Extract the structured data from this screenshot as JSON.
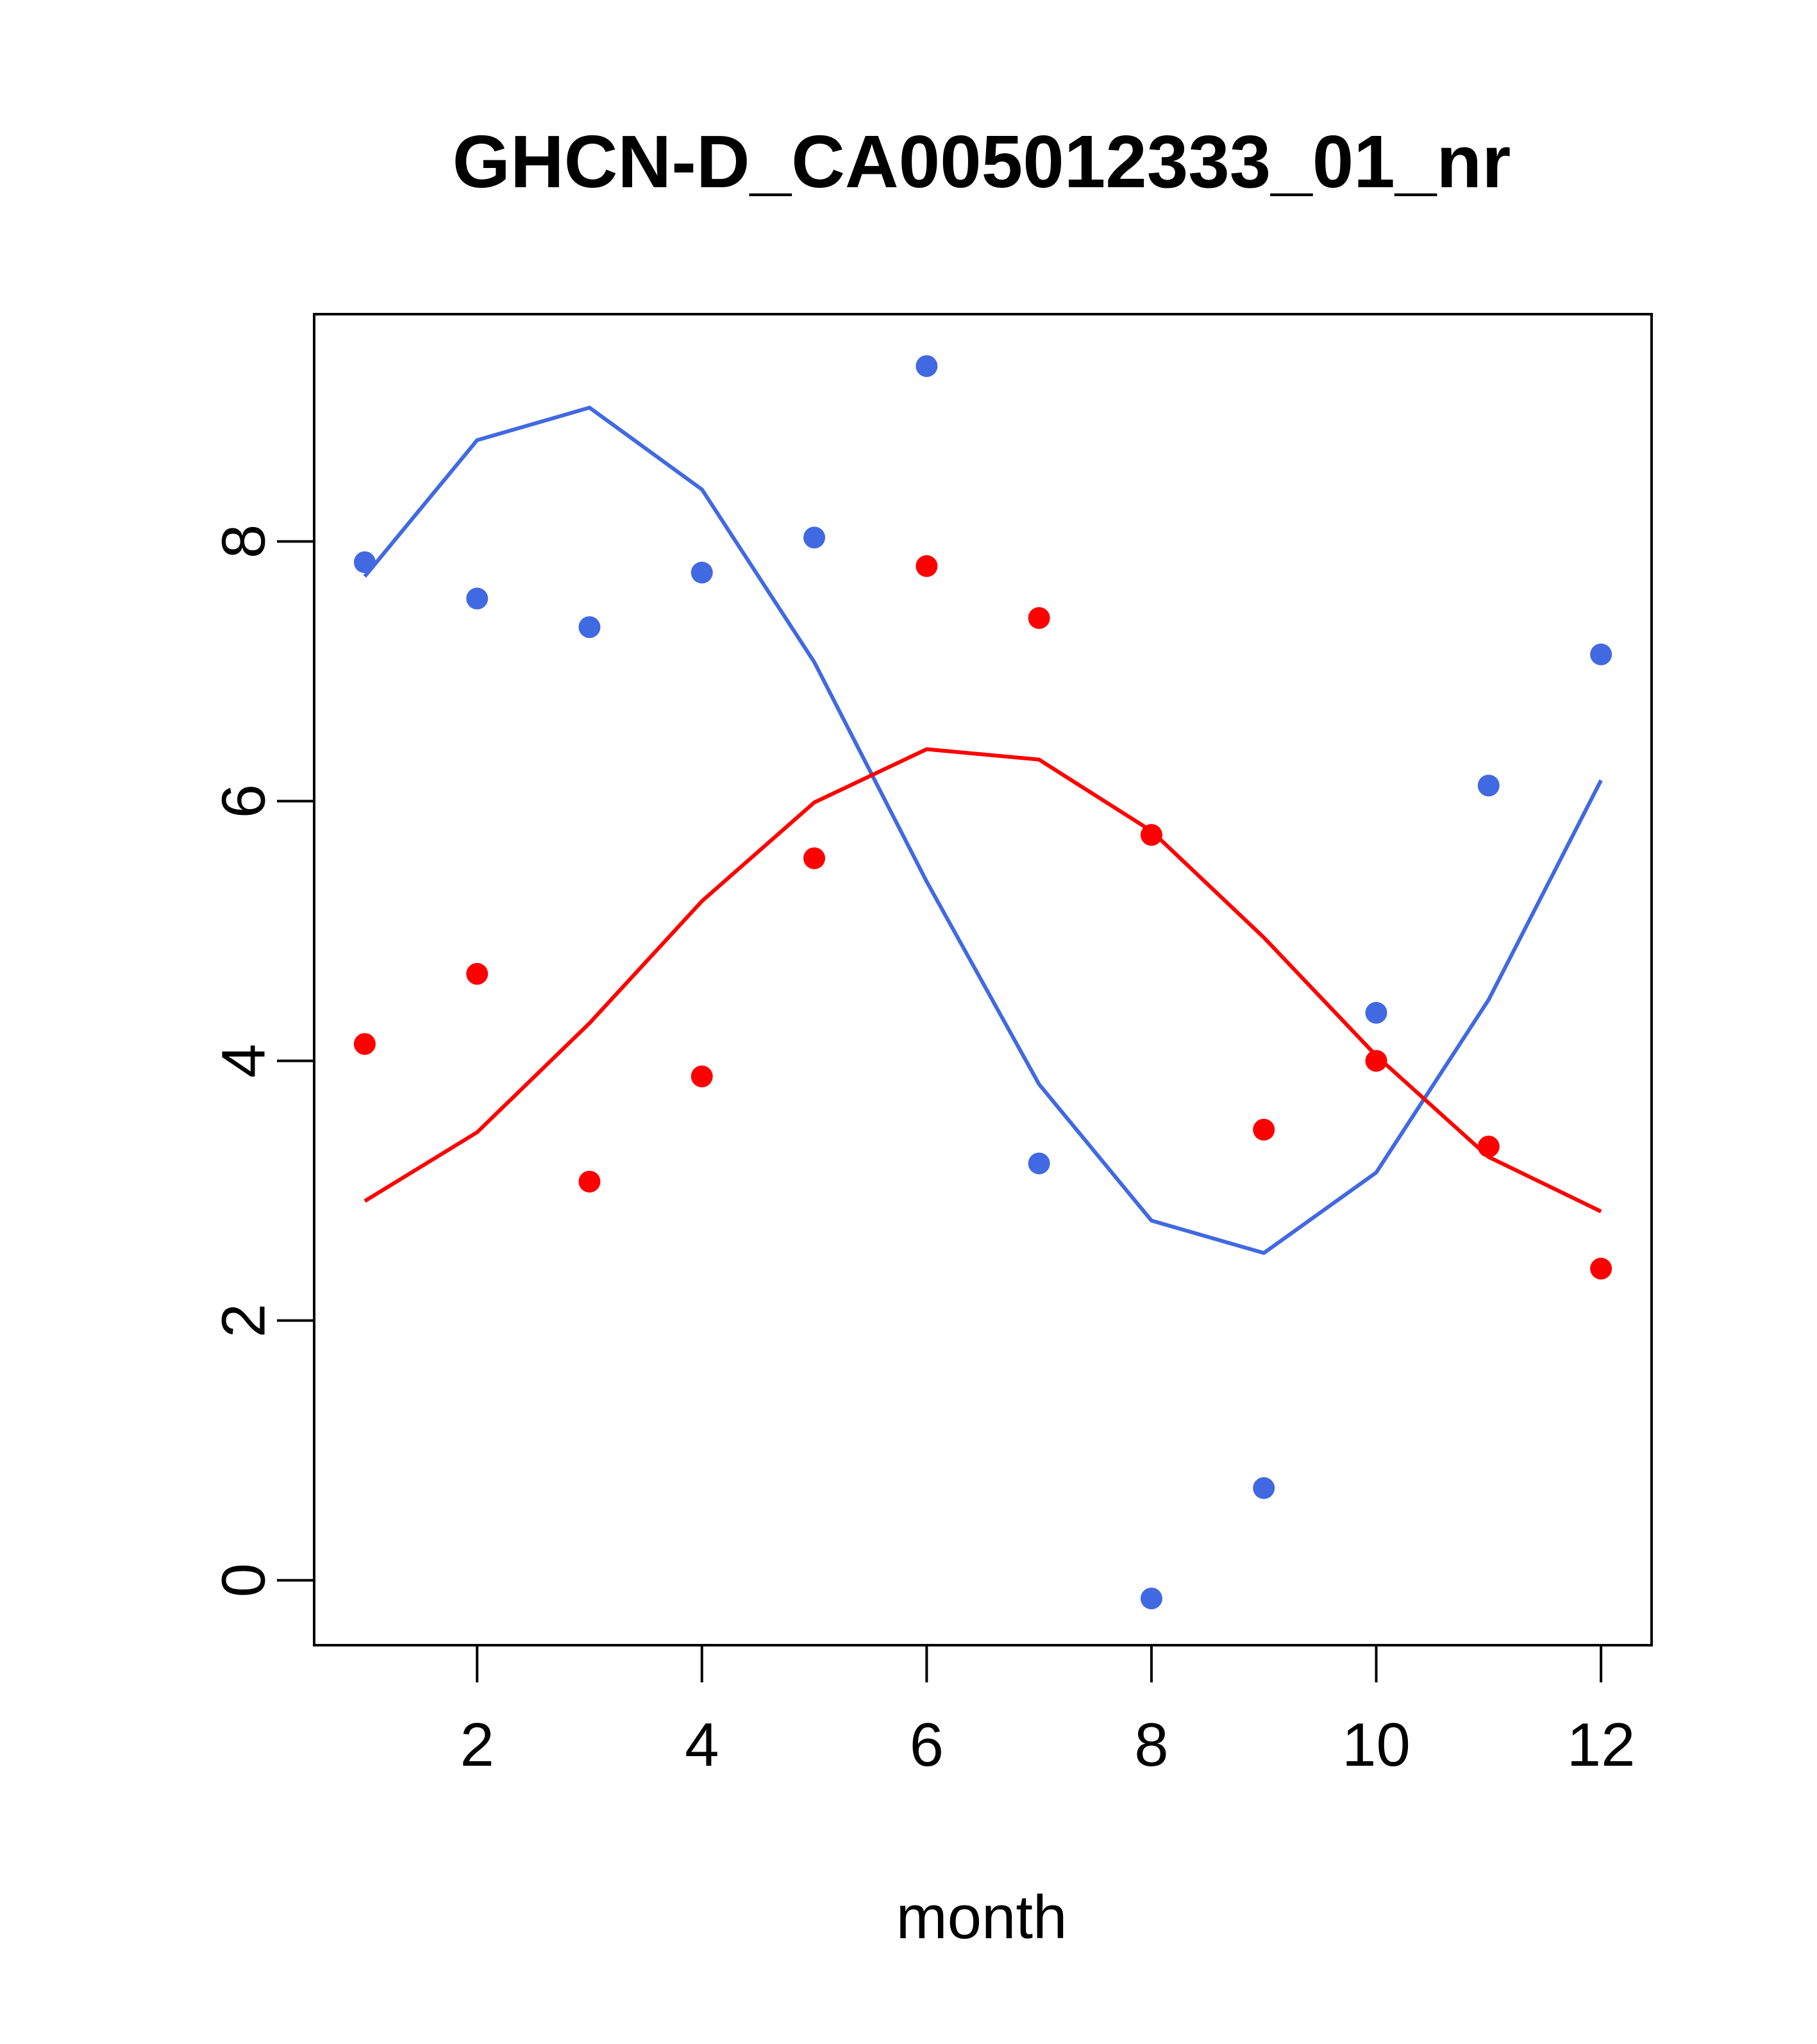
{
  "chart_data": {
    "type": "scatter",
    "title": "GHCN-D_CA005012333_01_nr",
    "xlabel": "month",
    "ylabel": "",
    "xlim": [
      0.55,
      12.45
    ],
    "ylim": [
      -0.5,
      9.75
    ],
    "x_ticks": [
      2,
      4,
      6,
      8,
      10,
      12
    ],
    "y_ticks": [
      0,
      2,
      4,
      6,
      8
    ],
    "grid": false,
    "legend": "none",
    "x": [
      1,
      2,
      3,
      4,
      5,
      6,
      7,
      8,
      9,
      10,
      11,
      12
    ],
    "series": [
      {
        "color": "#4169E1",
        "points": [
          7.84,
          7.56,
          7.34,
          7.76,
          8.03,
          9.35,
          3.21,
          -0.14,
          0.71,
          4.37,
          6.12,
          7.13
        ],
        "line": [
          7.73,
          8.78,
          9.03,
          8.4,
          7.07,
          5.38,
          3.82,
          2.77,
          2.52,
          3.14,
          4.47,
          6.16
        ]
      },
      {
        "color": "#FF0000",
        "points": [
          4.13,
          4.67,
          3.07,
          3.88,
          5.56,
          7.81,
          7.41,
          5.74,
          3.47,
          4.0,
          3.34,
          2.4
        ],
        "line": [
          2.92,
          3.45,
          4.29,
          5.23,
          5.99,
          6.4,
          6.32,
          5.77,
          4.95,
          4.04,
          3.26,
          2.84
        ]
      }
    ]
  }
}
